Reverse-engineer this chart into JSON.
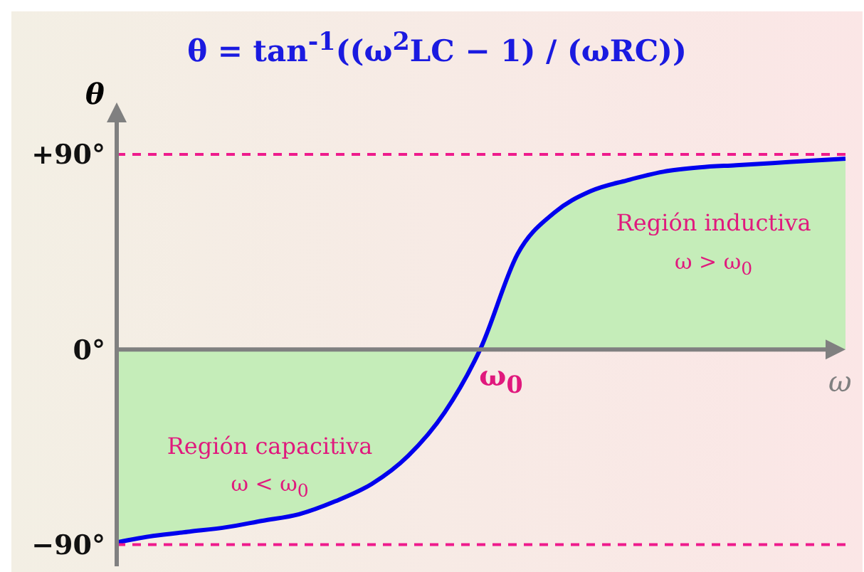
{
  "chart_data": {
    "type": "area",
    "title": "θ = tan$^{-1}$((ω$^{2}$LC − 1) / (ωRC))",
    "xlabel": "ω",
    "ylabel": "θ",
    "categories": [
      null,
      null,
      null,
      null,
      null,
      null,
      null,
      null,
      null,
      null,
      null,
      null,
      null,
      null,
      null,
      null,
      null,
      null,
      null,
      null,
      null
    ],
    "series": [
      {
        "color": "#c5edb9",
        "values": [
          -89,
          -86,
          -84,
          -82,
          -79,
          -76,
          -70,
          -62,
          -49,
          -29,
          1,
          44,
          63,
          73,
          78,
          82,
          84,
          85,
          86,
          87,
          88
        ]
      }
    ],
    "ylim": [
      -100,
      110
    ],
    "yticks": [
      {
        "value": 90,
        "label": "+90°"
      },
      {
        "value": 0,
        "label": "0°"
      },
      {
        "value": -90,
        "label": "−90°"
      }
    ],
    "ref_lines": [
      {
        "axis": "y",
        "value": 90,
        "color": "#ee1b8c",
        "line_style": "dashed"
      },
      {
        "axis": "y",
        "value": -90,
        "color": "#ee1b8c",
        "line_style": "dashed"
      }
    ],
    "annotations": [
      "Región inductiva",
      "ω > ω$_{0}$",
      "Región capacitiva",
      "ω < ω$_{0}$",
      "ω$_{0}$"
    ]
  }
}
